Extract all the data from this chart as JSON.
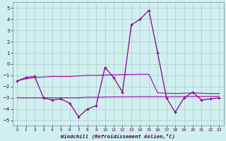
{
  "x": [
    0,
    1,
    2,
    3,
    4,
    5,
    6,
    7,
    8,
    9,
    10,
    11,
    12,
    13,
    14,
    15,
    16,
    17,
    18,
    19,
    20,
    21,
    22,
    23
  ],
  "line_main": [
    -1.5,
    -1.2,
    -1.1,
    -3.0,
    -3.2,
    -3.1,
    -3.5,
    -4.7,
    -4.0,
    -3.7,
    -0.3,
    -1.2,
    -2.5,
    3.5,
    4.0,
    4.8,
    1.0,
    -3.0,
    -4.3,
    -3.0,
    -2.5,
    -3.2,
    -3.1,
    -3.0
  ],
  "line_upper": [
    -1.5,
    -1.3,
    -1.2,
    -1.15,
    -1.1,
    -1.1,
    -1.1,
    -1.05,
    -1.0,
    -1.0,
    -0.97,
    -0.95,
    -0.93,
    -0.92,
    -0.9,
    -0.9,
    -2.55,
    -2.6,
    -2.62,
    -2.6,
    -2.55,
    -2.6,
    -2.62,
    -2.62
  ],
  "line_lower": [
    -3.0,
    -3.0,
    -3.0,
    -3.0,
    -3.0,
    -3.0,
    -3.0,
    -3.0,
    -2.95,
    -2.95,
    -2.93,
    -2.92,
    -2.91,
    -2.91,
    -2.9,
    -2.9,
    -2.9,
    -2.9,
    -2.9,
    -2.9,
    -2.88,
    -2.88,
    -2.88,
    -2.88
  ],
  "line_color": "#880088",
  "ref_color": "#aa00aa",
  "background_color": "#d0f0f0",
  "grid_color": "#b0c8c8",
  "xlabel": "Windchill (Refroidissement éolien,°C)",
  "ylim": [
    -5.5,
    5.5
  ],
  "xlim": [
    -0.5,
    23.5
  ],
  "yticks": [
    -5,
    -4,
    -3,
    -2,
    -1,
    0,
    1,
    2,
    3,
    4,
    5
  ],
  "xticks": [
    0,
    1,
    2,
    3,
    4,
    5,
    6,
    7,
    8,
    9,
    10,
    11,
    12,
    13,
    14,
    15,
    16,
    17,
    18,
    19,
    20,
    21,
    22,
    23
  ]
}
